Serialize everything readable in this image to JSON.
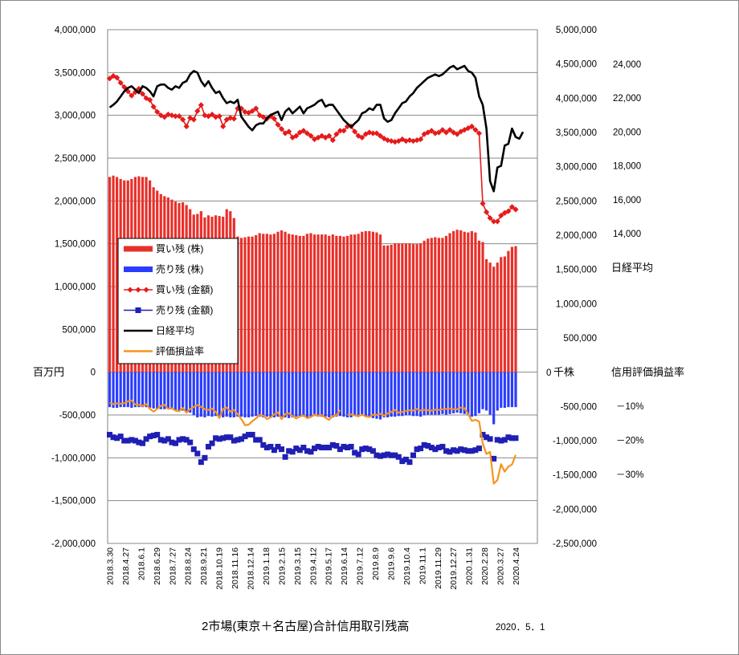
{
  "chart_data": {
    "type": "bar",
    "title": "2市場(東京＋名古屋)合計信用取引残高",
    "date": "2020．5．1",
    "left_axis": {
      "unit": "百万円",
      "ylim": [
        -2000000,
        4000000
      ],
      "ticks": [
        {
          "v": 4000000,
          "label": "4,000,000"
        },
        {
          "v": 3500000,
          "label": "3,500,000"
        },
        {
          "v": 3000000,
          "label": "3,000,000"
        },
        {
          "v": 2500000,
          "label": "2,500,000"
        },
        {
          "v": 2000000,
          "label": "2,000,000"
        },
        {
          "v": 1500000,
          "label": "1,500,000"
        },
        {
          "v": 1000000,
          "label": "1,000,000"
        },
        {
          "v": 500000,
          "label": "500,000"
        },
        {
          "v": 0,
          "label": "0"
        },
        {
          "v": -500000,
          "label": "-500,000"
        },
        {
          "v": -1000000,
          "label": "-1,000,000"
        },
        {
          "v": -1500000,
          "label": "-1,500,000"
        },
        {
          "v": -2000000,
          "label": "-2,000,000"
        }
      ]
    },
    "share_axis": {
      "unit": "千株",
      "ylim": [
        -2500000,
        5000000
      ],
      "ticks": [
        {
          "v": 5000000,
          "label": "5,000,000"
        },
        {
          "v": 4500000,
          "label": "4,500,000"
        },
        {
          "v": 4000000,
          "label": "4,000,000"
        },
        {
          "v": 3500000,
          "label": "3,500,000"
        },
        {
          "v": 3000000,
          "label": "3,000,000"
        },
        {
          "v": 2500000,
          "label": "2,500,000"
        },
        {
          "v": 2000000,
          "label": "2,000,000"
        },
        {
          "v": 1500000,
          "label": "1,500,000"
        },
        {
          "v": 1000000,
          "label": "1,000,000"
        },
        {
          "v": 500000,
          "label": "500,000"
        },
        {
          "v": 0,
          "label": "0"
        },
        {
          "v": -500000,
          "label": "-500,000"
        },
        {
          "v": -1000000,
          "label": "-1,000,000"
        },
        {
          "v": -1500000,
          "label": "-1,500,000"
        },
        {
          "v": -2000000,
          "label": "-2,000,000"
        },
        {
          "v": -2500000,
          "label": "-2,500,000"
        }
      ]
    },
    "nikkei_axis": {
      "label": "日経平均",
      "ticks": [
        {
          "v": 24000,
          "label": "24,000"
        },
        {
          "v": 22000,
          "label": "22,000"
        },
        {
          "v": 20000,
          "label": "20,000"
        },
        {
          "v": 18000,
          "label": "18,000"
        },
        {
          "v": 16000,
          "label": "16,000"
        },
        {
          "v": 14000,
          "label": "14,000"
        }
      ]
    },
    "pl_axis": {
      "label": "信用評価損益率",
      "ticks": [
        {
          "v": -10,
          "label": "－10%"
        },
        {
          "v": -20,
          "label": "－20%"
        },
        {
          "v": -30,
          "label": "－30%"
        }
      ]
    },
    "x_ticks": [
      "2018.3.30",
      "2018.4.27",
      "2018.6.1",
      "2018.6.29",
      "2018.7.27",
      "2018.8.24",
      "2018.9.21",
      "2018.10.19",
      "2018.11.16",
      "2018.12.14",
      "2019.1.18",
      "2019.2.15",
      "2019.3.15",
      "2019.4.12",
      "2019.5.17",
      "2019.6.14",
      "2019.7.12",
      "2019.8.9",
      "2019.9.6",
      "2019.10.4",
      "2019.11.1",
      "2019.11.29",
      "2019.12.27",
      "2020.1.31",
      "2020.2.28",
      "2020.3.27",
      "2020.4.24"
    ],
    "legend": [
      {
        "label": "買い残 (株)",
        "color": "#e8302a",
        "kind": "bar"
      },
      {
        "label": "売り残 (株)",
        "color": "#2a3cff",
        "kind": "bar"
      },
      {
        "label": "買い残 (金額)",
        "color": "#e51b1b",
        "kind": "diamond-line"
      },
      {
        "label": "売り残 (金額)",
        "color": "#1f1fb4",
        "kind": "square"
      },
      {
        "label": "日経平均",
        "color": "#000000",
        "kind": "line"
      },
      {
        "label": "評価損益率",
        "color": "#f7931e",
        "kind": "line"
      }
    ],
    "series": [
      {
        "name": "買い残 (株)",
        "axis": "share",
        "values": [
          2850000,
          2870000,
          2850000,
          2820000,
          2800000,
          2800000,
          2820000,
          2850000,
          2860000,
          2850000,
          2850000,
          2800000,
          2700000,
          2650000,
          2600000,
          2570000,
          2550000,
          2520000,
          2490000,
          2470000,
          2480000,
          2440000,
          2380000,
          2300000,
          2310000,
          2350000,
          2260000,
          2290000,
          2270000,
          2290000,
          2280000,
          2270000,
          2380000,
          2350000,
          2250000,
          1980000,
          1960000,
          1970000,
          1980000,
          1980000,
          2000000,
          2030000,
          2020000,
          2020000,
          2010000,
          2020000,
          2050000,
          2070000,
          2050000,
          2020000,
          2010000,
          2000000,
          1990000,
          1990000,
          2020000,
          2030000,
          2010000,
          2010000,
          2010000,
          2010000,
          1990000,
          2010000,
          1990000,
          1990000,
          1980000,
          1990000,
          2010000,
          2010000,
          2020000,
          2050000,
          2060000,
          2060000,
          2050000,
          2040000,
          2010000,
          1850000,
          1850000,
          1860000,
          1880000,
          1880000,
          1880000,
          1880000,
          1880000,
          1870000,
          1870000,
          1880000,
          1920000,
          1950000,
          1960000,
          1970000,
          1960000,
          1960000,
          1990000,
          2030000,
          2060000,
          2080000,
          2070000,
          2050000,
          2040000,
          2060000,
          2040000,
          1920000,
          1900000,
          1650000,
          1600000,
          1540000,
          1600000,
          1680000,
          1690000,
          1770000,
          1830000,
          1840000
        ]
      },
      {
        "name": "売り残 (株)",
        "axis": "share",
        "values": [
          -510000,
          -520000,
          -520000,
          -510000,
          -510000,
          -510000,
          -520000,
          -510000,
          -510000,
          -510000,
          -510000,
          -520000,
          -530000,
          -530000,
          -540000,
          -540000,
          -530000,
          -540000,
          -550000,
          -560000,
          -560000,
          -570000,
          -590000,
          -630000,
          -660000,
          -650000,
          -660000,
          -640000,
          -650000,
          -640000,
          -650000,
          -660000,
          -650000,
          -660000,
          -660000,
          -650000,
          -650000,
          -660000,
          -660000,
          -650000,
          -640000,
          -650000,
          -660000,
          -650000,
          -660000,
          -660000,
          -650000,
          -650000,
          -660000,
          -670000,
          -660000,
          -650000,
          -640000,
          -650000,
          -660000,
          -650000,
          -640000,
          -650000,
          -650000,
          -650000,
          -660000,
          -660000,
          -650000,
          -640000,
          -650000,
          -660000,
          -660000,
          -640000,
          -620000,
          -620000,
          -640000,
          -660000,
          -670000,
          -680000,
          -690000,
          -660000,
          -660000,
          -650000,
          -650000,
          -640000,
          -640000,
          -630000,
          -630000,
          -640000,
          -640000,
          -650000,
          -630000,
          -620000,
          -620000,
          -620000,
          -620000,
          -610000,
          -620000,
          -610000,
          -600000,
          -590000,
          -600000,
          -610000,
          -630000,
          -650000,
          -640000,
          -600000,
          -540000,
          -560000,
          -620000,
          -760000,
          -560000,
          -520000,
          -520000,
          -510000,
          -510000,
          -510000
        ]
      },
      {
        "name": "買い残 (金額)",
        "axis": "left",
        "values": [
          3430000,
          3460000,
          3440000,
          3380000,
          3330000,
          3280000,
          3230000,
          3270000,
          3310000,
          3250000,
          3200000,
          3180000,
          3100000,
          3040000,
          3000000,
          2980000,
          3010000,
          3000000,
          2990000,
          2990000,
          2950000,
          2870000,
          2970000,
          2950000,
          3050000,
          3120000,
          3000000,
          2990000,
          3010000,
          2980000,
          2990000,
          2870000,
          2950000,
          2970000,
          2960000,
          3080000,
          3080000,
          3040000,
          3030000,
          3050000,
          3080000,
          3000000,
          2980000,
          2960000,
          2990000,
          2960000,
          2890000,
          2840000,
          2790000,
          2810000,
          2740000,
          2760000,
          2800000,
          2820000,
          2790000,
          2760000,
          2720000,
          2740000,
          2760000,
          2740000,
          2760000,
          2710000,
          2780000,
          2820000,
          2820000,
          2870000,
          2870000,
          2810000,
          2760000,
          2740000,
          2780000,
          2800000,
          2790000,
          2790000,
          2760000,
          2730000,
          2710000,
          2700000,
          2690000,
          2700000,
          2720000,
          2700000,
          2710000,
          2700000,
          2710000,
          2720000,
          2780000,
          2800000,
          2820000,
          2790000,
          2800000,
          2830000,
          2800000,
          2830000,
          2800000,
          2780000,
          2810000,
          2830000,
          2850000,
          2870000,
          2830000,
          2790000,
          1970000,
          1870000,
          1800000,
          1760000,
          1760000,
          1830000,
          1860000,
          1880000,
          1930000,
          1900000
        ]
      },
      {
        "name": "売り残 (金額)",
        "axis": "left",
        "values": [
          -730000,
          -760000,
          -770000,
          -750000,
          -800000,
          -800000,
          -790000,
          -800000,
          -820000,
          -830000,
          -780000,
          -750000,
          -740000,
          -730000,
          -790000,
          -800000,
          -780000,
          -820000,
          -830000,
          -790000,
          -780000,
          -790000,
          -820000,
          -900000,
          -950000,
          -1050000,
          -1000000,
          -870000,
          -830000,
          -770000,
          -780000,
          -770000,
          -760000,
          -760000,
          -800000,
          -790000,
          -780000,
          -750000,
          -730000,
          -730000,
          -790000,
          -790000,
          -850000,
          -880000,
          -870000,
          -910000,
          -870000,
          -900000,
          -990000,
          -920000,
          -930000,
          -890000,
          -910000,
          -880000,
          -920000,
          -930000,
          -890000,
          -870000,
          -880000,
          -880000,
          -880000,
          -850000,
          -860000,
          -900000,
          -870000,
          -880000,
          -870000,
          -940000,
          -960000,
          -900000,
          -890000,
          -900000,
          -920000,
          -970000,
          -980000,
          -970000,
          -960000,
          -970000,
          -970000,
          -990000,
          -1040000,
          -1020000,
          -1050000,
          -970000,
          -900000,
          -890000,
          -850000,
          -860000,
          -880000,
          -900000,
          -880000,
          -870000,
          -920000,
          -930000,
          -910000,
          -920000,
          -900000,
          -910000,
          -920000,
          -920000,
          -910000,
          -890000,
          -730000,
          -760000,
          -780000,
          -1010000,
          -790000,
          -800000,
          -790000,
          -760000,
          -770000,
          -770000
        ]
      },
      {
        "name": "日経平均",
        "axis": "nikkei",
        "values": [
          21450,
          21600,
          21800,
          22100,
          22400,
          22600,
          22700,
          22500,
          22300,
          22700,
          22600,
          22400,
          22100,
          22700,
          22800,
          22800,
          22600,
          22500,
          22700,
          22600,
          22900,
          23000,
          23400,
          23600,
          23500,
          23000,
          22700,
          23000,
          22600,
          22300,
          22400,
          22000,
          21700,
          21800,
          21700,
          21900,
          20900,
          20600,
          20300,
          20100,
          20400,
          20500,
          20500,
          20800,
          21000,
          21100,
          21200,
          20700,
          21200,
          21400,
          21100,
          21300,
          21500,
          21100,
          21400,
          21500,
          21600,
          21800,
          21900,
          21500,
          21600,
          21600,
          21300,
          21000,
          20700,
          20500,
          20300,
          20500,
          20700,
          21100,
          21200,
          21400,
          21300,
          21600,
          21600,
          20800,
          20600,
          20700,
          21100,
          21400,
          21700,
          21800,
          22100,
          22300,
          22600,
          22800,
          23000,
          23200,
          23300,
          23400,
          23300,
          23400,
          23600,
          23800,
          23900,
          23700,
          23800,
          23900,
          23600,
          23500,
          23200,
          22100,
          21600,
          20200,
          17100,
          16500,
          17900,
          18000,
          19200,
          19300,
          20200,
          19700,
          19600,
          20000
        ]
      },
      {
        "name": "評価損益率",
        "axis": "pl",
        "values": [
          -9.0,
          -9.4,
          -9.2,
          -9.3,
          -9.1,
          -8.6,
          -8.3,
          -9.5,
          -9.6,
          -9.9,
          -9.4,
          -10.8,
          -11.6,
          -10.8,
          -9.9,
          -9.6,
          -10.8,
          -10.6,
          -11.3,
          -11.5,
          -10.5,
          -11.9,
          -10.8,
          -10.2,
          -9.7,
          -10.2,
          -10.9,
          -11.1,
          -10.7,
          -11.7,
          -13.5,
          -10.8,
          -10.4,
          -11.6,
          -11.1,
          -12.3,
          -13.8,
          -15.6,
          -15.4,
          -14.4,
          -13.6,
          -12.6,
          -12.8,
          -13.8,
          -13.3,
          -12.4,
          -11.8,
          -13.8,
          -12.3,
          -12.1,
          -12.9,
          -13.6,
          -13.0,
          -12.7,
          -13.5,
          -13.2,
          -12.5,
          -12.8,
          -12.6,
          -13.4,
          -14.0,
          -12.9,
          -12.7,
          -11.1,
          null,
          -12.5,
          -12.4,
          -12.7,
          -13.0,
          -12.5,
          -13.0,
          -13.2,
          -12.5,
          -12.6,
          -12.2,
          -12.8,
          -12.1,
          -11.7,
          -11.1,
          -11.9,
          -11.7,
          -11.4,
          -11.2,
          -11.3,
          -10.8,
          -11.3,
          -11.1,
          -11.2,
          -11.3,
          -11.0,
          -11.1,
          -10.9,
          -10.8,
          -10.7,
          -10.9,
          -10.9,
          -10.4,
          -10.6,
          -12.3,
          -14.3,
          -14.0,
          -14.5,
          -21.0,
          -24.0,
          -23.4,
          -32.7,
          -31.7,
          -27.0,
          -29.2,
          -27.7,
          -27.1,
          -24.3
        ]
      }
    ]
  }
}
